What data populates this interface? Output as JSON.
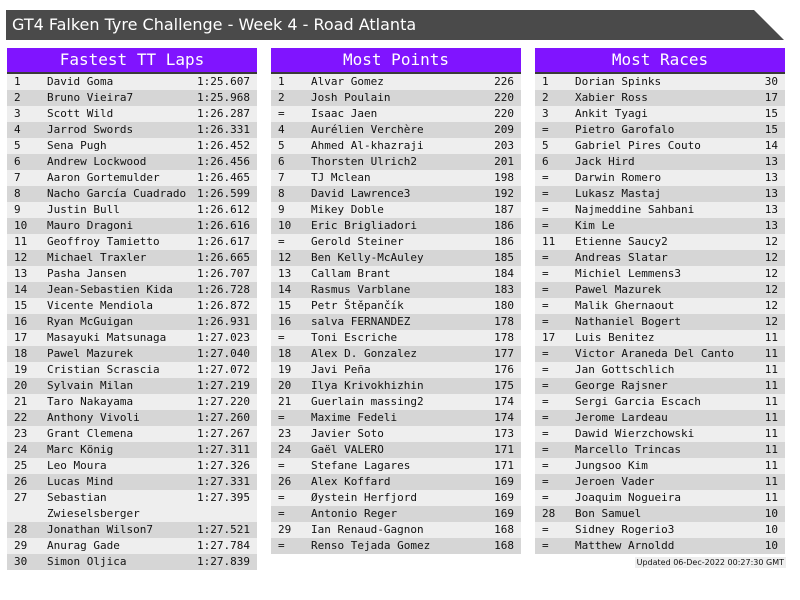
{
  "title": "GT4 Falken Tyre Challenge - Week 4 - Road Atlanta",
  "colors": {
    "header": "#8014ff",
    "title_bar": "#4a4a4a",
    "row_light": "#eeeeee",
    "row_dark": "#d6d6d6"
  },
  "panels": [
    {
      "title": "Fastest TT Laps",
      "rows": [
        [
          "1",
          "David Goma",
          "1:25.607"
        ],
        [
          "2",
          "Bruno Vieira7",
          "1:25.968"
        ],
        [
          "3",
          "Scott Wild",
          "1:26.287"
        ],
        [
          "4",
          "Jarrod Swords",
          "1:26.331"
        ],
        [
          "5",
          "Sena Pugh",
          "1:26.452"
        ],
        [
          "6",
          "Andrew Lockwood",
          "1:26.456"
        ],
        [
          "7",
          "Aaron Gortemulder",
          "1:26.465"
        ],
        [
          "8",
          "Nacho García Cuadrado",
          "1:26.599"
        ],
        [
          "9",
          "Justin Bull",
          "1:26.612"
        ],
        [
          "10",
          "Mauro Dragoni",
          "1:26.616"
        ],
        [
          "11",
          "Geoffroy Tamietto",
          "1:26.617"
        ],
        [
          "12",
          "Michael Traxler",
          "1:26.665"
        ],
        [
          "13",
          "Pasha Jansen",
          "1:26.707"
        ],
        [
          "14",
          "Jean-Sebastien Kida",
          "1:26.728"
        ],
        [
          "15",
          "Vicente Mendiola",
          "1:26.872"
        ],
        [
          "16",
          "Ryan McGuigan",
          "1:26.931"
        ],
        [
          "17",
          "Masayuki Matsunaga",
          "1:27.023"
        ],
        [
          "18",
          "Pawel Mazurek",
          "1:27.040"
        ],
        [
          "19",
          "Cristian Scrascia",
          "1:27.072"
        ],
        [
          "20",
          "Sylvain Milan",
          "1:27.219"
        ],
        [
          "21",
          "Taro Nakayama",
          "1:27.220"
        ],
        [
          "22",
          "Anthony Vivoli",
          "1:27.260"
        ],
        [
          "23",
          "Grant Clemena",
          "1:27.267"
        ],
        [
          "24",
          "Marc König",
          "1:27.311"
        ],
        [
          "25",
          "Leo Moura",
          "1:27.326"
        ],
        [
          "26",
          "Lucas Mind",
          "1:27.331"
        ],
        [
          "27",
          "Sebastian Zwieselsberger",
          "1:27.395"
        ],
        [
          "28",
          "Jonathan Wilson7",
          "1:27.521"
        ],
        [
          "29",
          "Anurag Gade",
          "1:27.784"
        ],
        [
          "30",
          "Simon Oljica",
          "1:27.839"
        ]
      ]
    },
    {
      "title": "Most Points",
      "rows": [
        [
          "1",
          "Alvar Gomez",
          "226"
        ],
        [
          "2",
          "Josh Poulain",
          "220"
        ],
        [
          "=",
          "Isaac Jaen",
          "220"
        ],
        [
          "4",
          "Aurélien Verchère",
          "209"
        ],
        [
          "5",
          "Ahmed Al-khazraji",
          "203"
        ],
        [
          "6",
          "Thorsten Ulrich2",
          "201"
        ],
        [
          "7",
          "TJ Mclean",
          "198"
        ],
        [
          "8",
          "David Lawrence3",
          "192"
        ],
        [
          "9",
          "Mikey Doble",
          "187"
        ],
        [
          "10",
          "Eric Brigliadori",
          "186"
        ],
        [
          "=",
          "Gerold Steiner",
          "186"
        ],
        [
          "12",
          "Ben Kelly-McAuley",
          "185"
        ],
        [
          "13",
          "Callam Brant",
          "184"
        ],
        [
          "14",
          "Rasmus Varblane",
          "183"
        ],
        [
          "15",
          "Petr Štěpančík",
          "180"
        ],
        [
          "16",
          "salva FERNANDEZ",
          "178"
        ],
        [
          "=",
          "Toni Escriche",
          "178"
        ],
        [
          "18",
          "Alex D. Gonzalez",
          "177"
        ],
        [
          "19",
          "Javi Peña",
          "176"
        ],
        [
          "20",
          "Ilya Krivokhizhin",
          "175"
        ],
        [
          "21",
          "Guerlain massing2",
          "174"
        ],
        [
          "=",
          "Maxime Fedeli",
          "174"
        ],
        [
          "23",
          "Javier Soto",
          "173"
        ],
        [
          "24",
          "Gaël VALERO",
          "171"
        ],
        [
          "=",
          "Stefane Lagares",
          "171"
        ],
        [
          "26",
          "Alex Koffard",
          "169"
        ],
        [
          "=",
          "Øystein Herfjord",
          "169"
        ],
        [
          "=",
          "Antonio Reger",
          "169"
        ],
        [
          "29",
          "Ian Renaud-Gagnon",
          "168"
        ],
        [
          "=",
          "Renso Tejada Gomez",
          "168"
        ]
      ]
    },
    {
      "title": "Most Races",
      "rows": [
        [
          "1",
          "Dorian Spinks",
          "30"
        ],
        [
          "2",
          "Xabier Ross",
          "17"
        ],
        [
          "3",
          "Ankit Tyagi",
          "15"
        ],
        [
          "=",
          "Pietro Garofalo",
          "15"
        ],
        [
          "5",
          "Gabriel Pires Couto",
          "14"
        ],
        [
          "6",
          "Jack Hird",
          "13"
        ],
        [
          "=",
          "Darwin Romero",
          "13"
        ],
        [
          "=",
          "Lukasz Mastaj",
          "13"
        ],
        [
          "=",
          "Najmeddine Sahbani",
          "13"
        ],
        [
          "=",
          "Kim Le",
          "13"
        ],
        [
          "11",
          "Etienne Saucy2",
          "12"
        ],
        [
          "=",
          "Andreas Slatar",
          "12"
        ],
        [
          "=",
          "Michiel Lemmens3",
          "12"
        ],
        [
          "=",
          "Pawel Mazurek",
          "12"
        ],
        [
          "=",
          "Malik Ghernaout",
          "12"
        ],
        [
          "=",
          "Nathaniel Bogert",
          "12"
        ],
        [
          "17",
          "Luis Benitez",
          "11"
        ],
        [
          "=",
          "Victor Araneda Del Canto",
          "11"
        ],
        [
          "=",
          "Jan Gottschlich",
          "11"
        ],
        [
          "=",
          "George Rajsner",
          "11"
        ],
        [
          "=",
          "Sergi Garcia Escach",
          "11"
        ],
        [
          "=",
          "Jerome Lardeau",
          "11"
        ],
        [
          "=",
          "Dawid Wierzchowski",
          "11"
        ],
        [
          "=",
          "Marcello Trincas",
          "11"
        ],
        [
          "=",
          "Jungsoo Kim",
          "11"
        ],
        [
          "=",
          "Jeroen Vader",
          "11"
        ],
        [
          "=",
          "Joaquim Nogueira",
          "11"
        ],
        [
          "28",
          "Bon Samuel",
          "10"
        ],
        [
          "=",
          "Sidney Rogerio3",
          "10"
        ],
        [
          "=",
          "Matthew Arnoldd",
          "10"
        ]
      ]
    }
  ],
  "updated": "Updated 06-Dec-2022 00:27:30 GMT"
}
